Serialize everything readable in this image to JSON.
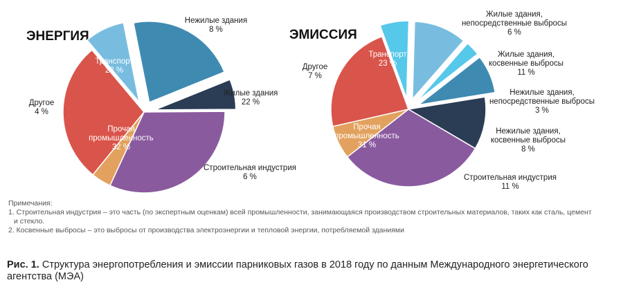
{
  "chart_data": [
    {
      "type": "pie",
      "title": "ЭНЕРГИЯ",
      "unit": "%",
      "slices": [
        {
          "lines": [
            "Нежилые здания",
            "8 %"
          ],
          "value": 8,
          "color": "#78bde0"
        },
        {
          "lines": [
            "Жилые здания",
            "22 %"
          ],
          "value": 22,
          "color": "#3f8ab1"
        },
        {
          "lines": [
            "Строительная индустрия",
            "6 %"
          ],
          "value": 6,
          "color": "#2b3c55"
        },
        {
          "lines": [
            "Прочая",
            "промышленность",
            "32 %"
          ],
          "value": 32,
          "color": "#8a5a9e"
        },
        {
          "lines": [
            "Другое",
            "4 %"
          ],
          "value": 4,
          "color": "#e2a15e"
        },
        {
          "lines": [
            "Транспорт",
            "28 %"
          ],
          "value": 28,
          "color": "#d9544a"
        }
      ]
    },
    {
      "type": "pie",
      "title": "ЭМИССИЯ",
      "unit": "%",
      "slices": [
        {
          "lines": [
            "Жилые здания,",
            "непосредственные выбросы",
            "6 %"
          ],
          "value": 6,
          "color": "#56c8ea"
        },
        {
          "lines": [
            "Жилые здания,",
            "косвенные выбросы",
            "11 %"
          ],
          "value": 11,
          "color": "#78bde0"
        },
        {
          "lines": [
            "Нежилые здания,",
            "непосредственные выбросы",
            "3 %"
          ],
          "value": 3,
          "color": "#56c8ea"
        },
        {
          "lines": [
            "Нежилые здания,",
            "косвенные выбросы",
            "8 %"
          ],
          "value": 8,
          "color": "#3f8ab1"
        },
        {
          "lines": [
            "Строительная индустрия",
            "11 %"
          ],
          "value": 11,
          "color": "#2b3c55"
        },
        {
          "lines": [
            "Прочая",
            "промышленность",
            "31 %"
          ],
          "value": 31,
          "color": "#8a5a9e"
        },
        {
          "lines": [
            "Другое",
            "7 %"
          ],
          "value": 7,
          "color": "#e2a15e"
        },
        {
          "lines": [
            "Транспорт",
            "23 %"
          ],
          "value": 23,
          "color": "#d9544a"
        }
      ]
    }
  ],
  "notes": {
    "heading": "Примечания:",
    "item1_line1": "1. Строительная индустрия – это часть (по экспертным оценкам) всей промышленности, занимающаяся производством строительных материалов, таких как сталь, цемент",
    "item1_line2": "и стекло.",
    "item2": "2. Косвенные выбросы – это выбросы от производства электроэнергии и тепловой энергии, потребляемой зданиями"
  },
  "caption": {
    "prefix": "Рис. 1.",
    "text": "Структура энергопотребления и эмиссии парниковых газов в 2018 году по данным Международного энергетического агентства (МЭА)"
  }
}
